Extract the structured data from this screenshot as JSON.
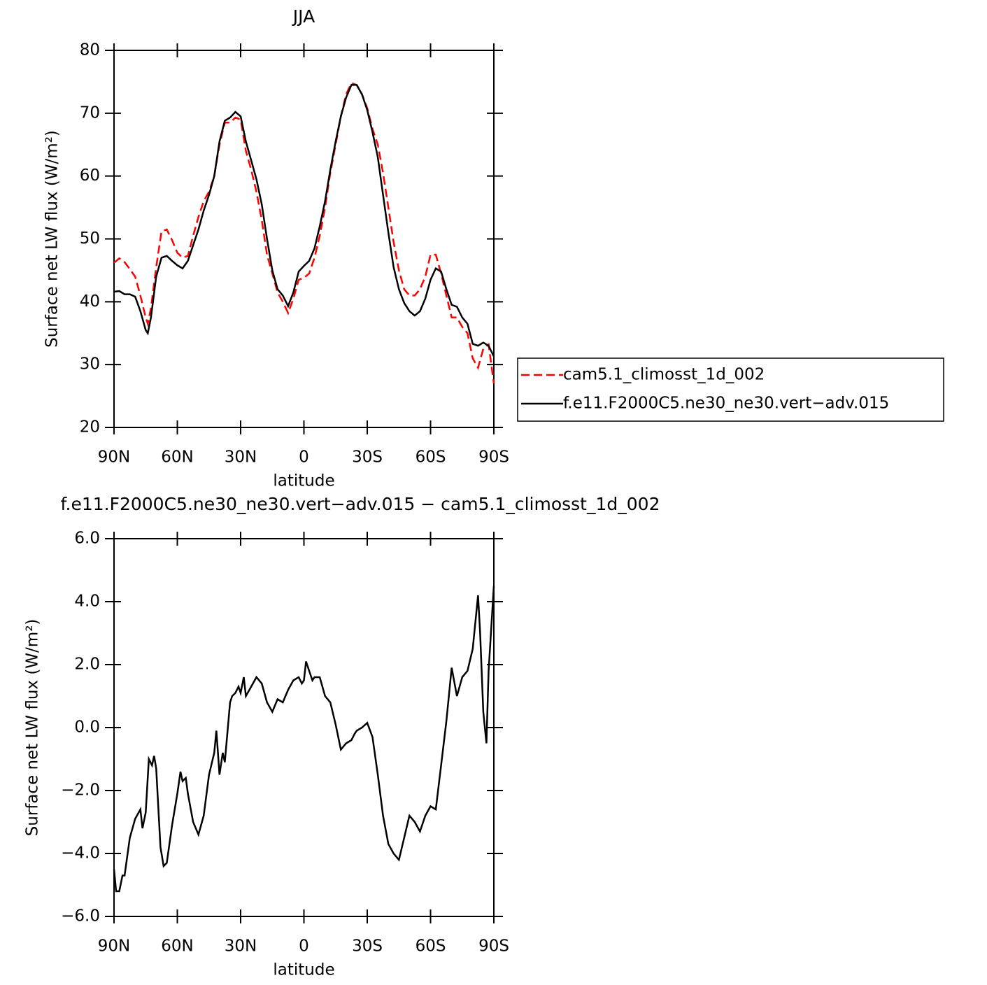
{
  "chart_data": [
    {
      "type": "line",
      "title": "JJA",
      "xlabel": "latitude",
      "ylabel": "Surface net LW flux (W/m²)",
      "xlim": [
        90,
        -90
      ],
      "ylim": [
        20,
        80
      ],
      "xticks": [
        {
          "value": 90,
          "label": "90N"
        },
        {
          "value": 60,
          "label": "60N"
        },
        {
          "value": 30,
          "label": "30N"
        },
        0,
        {
          "value": -30,
          "label": "30S"
        },
        {
          "value": -60,
          "label": "60S"
        },
        {
          "value": -90,
          "label": "90S"
        }
      ],
      "yticks": [
        20,
        30,
        40,
        50,
        60,
        70,
        80
      ],
      "legend": "right",
      "x": [
        90,
        87.5,
        85,
        82.5,
        80,
        77.5,
        75,
        74,
        72.5,
        70,
        67.5,
        65,
        62.5,
        60,
        57.5,
        55,
        52.5,
        50,
        47.5,
        45,
        42.5,
        40,
        37.5,
        35,
        32.5,
        30,
        27.5,
        25,
        22.5,
        20,
        17.5,
        15,
        12.5,
        10,
        7.5,
        5,
        2.5,
        0,
        -2.5,
        -5,
        -7.5,
        -10,
        -12.5,
        -15,
        -17.5,
        -20,
        -22.5,
        -25,
        -27.5,
        -30,
        -32.5,
        -35,
        -37.5,
        -40,
        -42.5,
        -45,
        -47.5,
        -50,
        -52.5,
        -55,
        -57.5,
        -60,
        -62.5,
        -65,
        -67.5,
        -70,
        -72.5,
        -75,
        -77.5,
        -80,
        -82.5,
        -85,
        -87.5,
        -90
      ],
      "series": [
        {
          "name": "cam5.1_climosst_1d_002",
          "color": "#ff0000",
          "dash": true,
          "values": [
            46.2,
            46.9,
            46.3,
            45.2,
            44,
            41,
            37.5,
            36.5,
            39,
            45.5,
            51.2,
            51.5,
            49.8,
            47.8,
            47,
            47.3,
            50.5,
            53.5,
            56,
            57.5,
            60,
            65,
            68.5,
            68.5,
            69.3,
            69,
            64,
            61,
            57.5,
            53,
            47.5,
            44.5,
            41.5,
            40,
            38.2,
            40.5,
            43.5,
            43.8,
            44.5,
            47,
            50.5,
            55,
            60.5,
            65,
            69.5,
            73,
            74.8,
            74.5,
            73,
            70.8,
            67.5,
            65,
            60.5,
            55,
            49.5,
            45,
            42,
            41,
            41,
            42,
            44,
            47.5,
            47.5,
            44.5,
            41,
            37.5,
            37.5,
            36,
            35,
            31,
            29.5,
            32.5,
            33.2,
            27
          ]
        },
        {
          "name": "f.e11.F2000C5.ne30_ne30.vert−adv.015",
          "color": "#000000",
          "dash": false,
          "values": [
            41.6,
            41.7,
            41.2,
            41.2,
            40.8,
            38.5,
            35.5,
            35.0,
            37.5,
            44,
            47,
            47.3,
            46.5,
            45.8,
            45.3,
            46.5,
            49,
            51.5,
            54.5,
            57,
            60,
            65.5,
            68.8,
            69.3,
            70.2,
            69.5,
            65.5,
            62.5,
            59.5,
            55.5,
            50,
            45,
            42,
            41,
            39.3,
            41.5,
            44.8,
            45.7,
            46.5,
            48.5,
            52,
            56,
            61,
            65.5,
            69.5,
            72.5,
            74.5,
            74.5,
            73,
            70.5,
            67,
            63,
            57,
            51,
            45.5,
            42,
            39.8,
            38.5,
            37.8,
            38.5,
            40.5,
            43.5,
            45.3,
            44.8,
            42,
            39.5,
            39.2,
            37.5,
            36.5,
            33.3,
            33.0,
            33.5,
            33.0,
            31.3
          ]
        }
      ]
    },
    {
      "type": "line",
      "title": "f.e11.F2000C5.ne30_ne30.vert−adv.015 − cam5.1_climosst_1d_002",
      "xlabel": "latitude",
      "ylabel": "Surface net LW flux (W/m²)",
      "xlim": [
        90,
        -90
      ],
      "ylim": [
        -6,
        6
      ],
      "xticks": [
        {
          "value": 90,
          "label": "90N"
        },
        {
          "value": 60,
          "label": "60N"
        },
        {
          "value": 30,
          "label": "30N"
        },
        0,
        {
          "value": -30,
          "label": "30S"
        },
        {
          "value": -60,
          "label": "60S"
        },
        {
          "value": -90,
          "label": "90S"
        }
      ],
      "yticks": [
        {
          "value": -6,
          "label": "−6.0"
        },
        {
          "value": -4,
          "label": "−4.0"
        },
        {
          "value": -2,
          "label": "−2.0"
        },
        {
          "value": 0,
          "label": "0.0"
        },
        {
          "value": 2,
          "label": "2.0"
        },
        {
          "value": 4,
          "label": "4.0"
        },
        {
          "value": 6,
          "label": "6.0"
        }
      ],
      "x": [
        90,
        89,
        87.5,
        86,
        85,
        82.5,
        80,
        77.5,
        76.5,
        75,
        73.5,
        72,
        71,
        70,
        68,
        66.5,
        65,
        62.5,
        60,
        58.5,
        57.5,
        56,
        55,
        52.5,
        50,
        47.5,
        45,
        42.5,
        41.5,
        40,
        38.5,
        37.5,
        35,
        34,
        32.5,
        31,
        30,
        28.5,
        27.5,
        25,
        22.5,
        20,
        17.5,
        15,
        12.5,
        10,
        7.5,
        5,
        2.5,
        1,
        0,
        -1,
        -2.5,
        -4,
        -5,
        -7.5,
        -10,
        -12.5,
        -15,
        -17.5,
        -20,
        -22.5,
        -24,
        -25,
        -27.5,
        -30,
        -32.5,
        -35,
        -37.5,
        -40,
        -42.5,
        -45,
        -47.5,
        -50,
        -52.5,
        -55,
        -57.5,
        -60,
        -62.5,
        -65,
        -67.5,
        -70,
        -72.5,
        -75,
        -77.5,
        -80,
        -82.5,
        -83.5,
        -85,
        -86.5,
        -87.5,
        -90
      ],
      "series": [
        {
          "color": "#000000",
          "dash": false,
          "values": [
            -4.5,
            -5.2,
            -5.2,
            -4.7,
            -4.7,
            -3.5,
            -2.9,
            -2.6,
            -3.2,
            -2.7,
            -1.0,
            -1.2,
            -0.9,
            -1.3,
            -3.8,
            -4.4,
            -4.3,
            -3.1,
            -2.1,
            -1.4,
            -1.7,
            -1.6,
            -2.1,
            -3.0,
            -3.4,
            -2.8,
            -1.5,
            -0.8,
            -0.1,
            -1.5,
            -0.8,
            -1.1,
            0.8,
            1.0,
            1.1,
            1.3,
            1.1,
            1.6,
            1.0,
            1.3,
            1.6,
            1.4,
            0.8,
            0.5,
            0.9,
            0.8,
            1.2,
            1.5,
            1.6,
            1.4,
            1.5,
            2.1,
            1.8,
            1.5,
            1.6,
            1.6,
            1.0,
            0.8,
            0.1,
            -0.7,
            -0.5,
            -0.4,
            -0.2,
            -0.1,
            0.0,
            0.15,
            -0.3,
            -1.5,
            -2.8,
            -3.7,
            -4.0,
            -4.2,
            -3.5,
            -2.8,
            -3.0,
            -3.3,
            -2.8,
            -2.5,
            -2.6,
            -1.2,
            0.2,
            1.9,
            1.0,
            1.6,
            1.8,
            2.5,
            4.2,
            3.0,
            0.5,
            -0.5,
            1.8,
            4.5
          ]
        }
      ]
    }
  ]
}
